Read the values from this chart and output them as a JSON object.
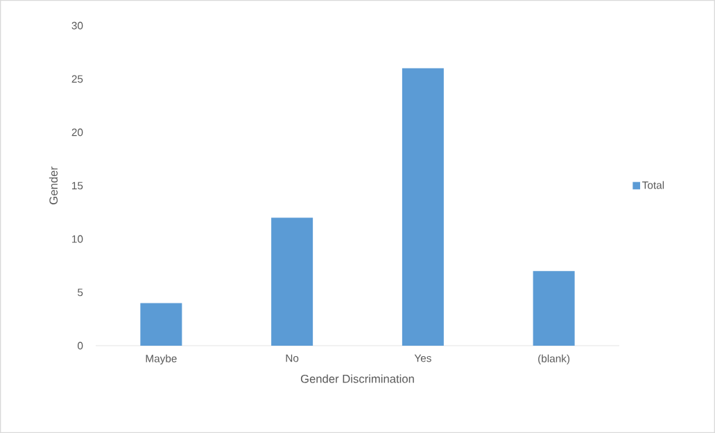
{
  "chart_data": {
    "type": "bar",
    "xlabel": "Gender Discrimination",
    "ylabel": "Gender",
    "categories": [
      "Maybe",
      "No",
      "Yes",
      "(blank)"
    ],
    "series": [
      {
        "name": "Total",
        "color": "#5b9bd5",
        "values": [
          4,
          12,
          26,
          7
        ]
      }
    ],
    "ylim": [
      0,
      30
    ],
    "yticks": [
      0,
      5,
      10,
      15,
      20,
      25,
      30
    ],
    "legend": "right"
  }
}
